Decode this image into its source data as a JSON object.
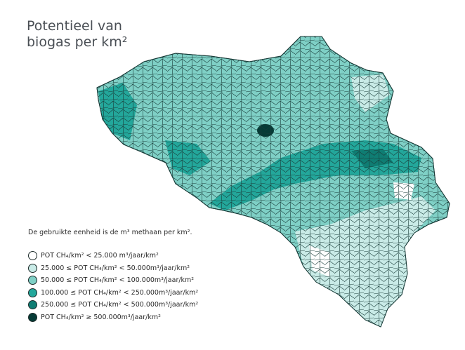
{
  "header": {
    "title": "Potentieel van biogas per km²"
  },
  "note": "De gebruikte eenheid is de m³ methaan per km².",
  "legend": [
    {
      "label": "POT CH₄/km² < 25.000 m³/jaar/km²",
      "color": "#ffffff"
    },
    {
      "label": "25.000 ≤ POT CH₄/km² < 50.000m³/jaar/km²",
      "color": "#c9ebe7"
    },
    {
      "label": "50.000 ≤ POT CH₄/km² < 100.000m³/jaar/km²",
      "color": "#7fd0c6"
    },
    {
      "label": "100.000 ≤ POT CH₄/km² < 250.000m³/jaar/km²",
      "color": "#23a79b"
    },
    {
      "label": "250.000 ≤ POT CH₄/km² < 500.000m³/jaar/km²",
      "color": "#0f7d73"
    },
    {
      "label": "POT CH₄/km² ≥ 500.000m³/jaar/km²",
      "color": "#063b36"
    }
  ]
}
